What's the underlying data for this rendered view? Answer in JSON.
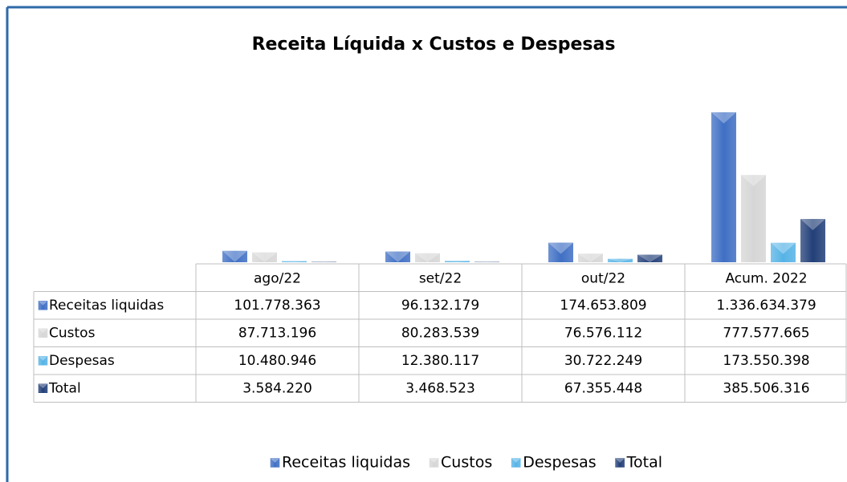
{
  "chart_data": {
    "type": "bar",
    "title": "Receita Líquida x Custos e Despesas",
    "categories": [
      "ago/22",
      "set/22",
      "out/22",
      "Acum. 2022"
    ],
    "series": [
      {
        "name": "Receitas liquidas",
        "color": "#3f6fc4",
        "values": [
          101778363,
          96132179,
          174653809,
          1336634379
        ],
        "value_labels": [
          "101.778.363",
          "96.132.179",
          "174.653.809",
          "1.336.634.379"
        ]
      },
      {
        "name": "Custos",
        "color": "#d6d6d6",
        "values": [
          87713196,
          80283539,
          76576112,
          777577665
        ],
        "value_labels": [
          "87.713.196",
          "80.283.539",
          "76.576.112",
          "777.577.665"
        ]
      },
      {
        "name": "Despesas",
        "color": "#56b3e6",
        "values": [
          10480946,
          12380117,
          30722249,
          173550398
        ],
        "value_labels": [
          "10.480.946",
          "12.380.117",
          "30.722.249",
          "173.550.398"
        ]
      },
      {
        "name": "Total",
        "color": "#223f78",
        "values": [
          3584220,
          3468523,
          67355448,
          385506316
        ],
        "value_labels": [
          "3.584.220",
          "3.468.523",
          "67.355.448",
          "385.506.316"
        ]
      }
    ],
    "legend": "bottom"
  }
}
